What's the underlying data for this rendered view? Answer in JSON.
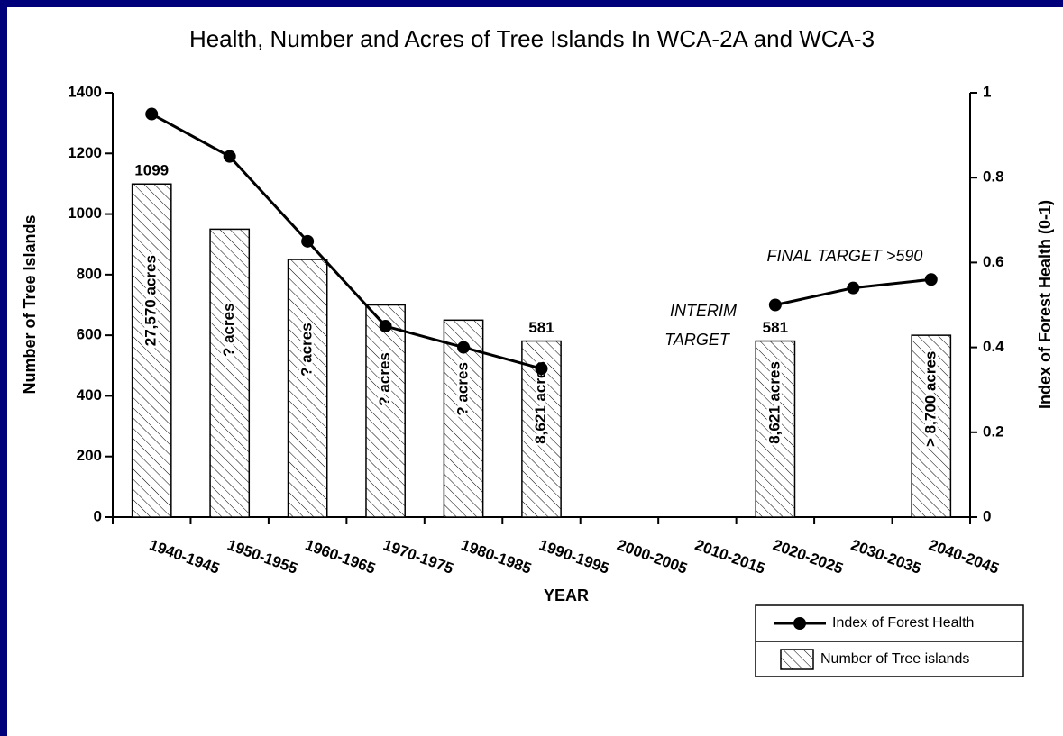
{
  "chart_data": {
    "type": "bar_line",
    "title": "Health, Number and Acres of Tree Islands In WCA-2A and WCA-3",
    "xlabel": "YEAR",
    "ylabel": "Number of Tree Islands",
    "y2label": "Index of Forest Health (0-1)",
    "categories": [
      "1940-1945",
      "1950-1955",
      "1960-1965",
      "1970-1975",
      "1980-1985",
      "1990-1995",
      "2000-2005",
      "2010-2015",
      "2020-2025",
      "2030-2035",
      "2040-2045"
    ],
    "series": [
      {
        "name": "Index of Forest Health",
        "type": "line",
        "axis": "y2",
        "color": "#000000",
        "values": [
          0.95,
          0.85,
          0.65,
          0.45,
          0.4,
          0.35,
          null,
          null,
          0.5,
          0.54,
          0.56
        ]
      },
      {
        "name": "Number of Tree islands",
        "type": "bar",
        "color": "#000000",
        "values": [
          1099,
          950,
          850,
          700,
          650,
          581,
          null,
          null,
          581,
          null,
          600
        ],
        "value_labels": [
          "1099",
          null,
          null,
          null,
          null,
          "581",
          null,
          null,
          "581",
          null,
          null
        ],
        "bar_labels": [
          "27,570 acres",
          "? acres",
          "? acres",
          "? acres",
          "? acres",
          "8,621 acres",
          null,
          null,
          "8,621 acres",
          null,
          "> 8,700 acres"
        ]
      }
    ],
    "annotations": [
      "INTERIM",
      "TARGET",
      "FINAL TARGET >590"
    ],
    "ylim": [
      0,
      1400
    ],
    "yticks": [
      0,
      200,
      400,
      600,
      800,
      1000,
      1200,
      1400
    ],
    "y2lim": [
      0,
      1
    ],
    "y2ticks": [
      0,
      0.2,
      0.4,
      0.6,
      0.8,
      1
    ],
    "legend": "bottom-right",
    "grid": false
  }
}
